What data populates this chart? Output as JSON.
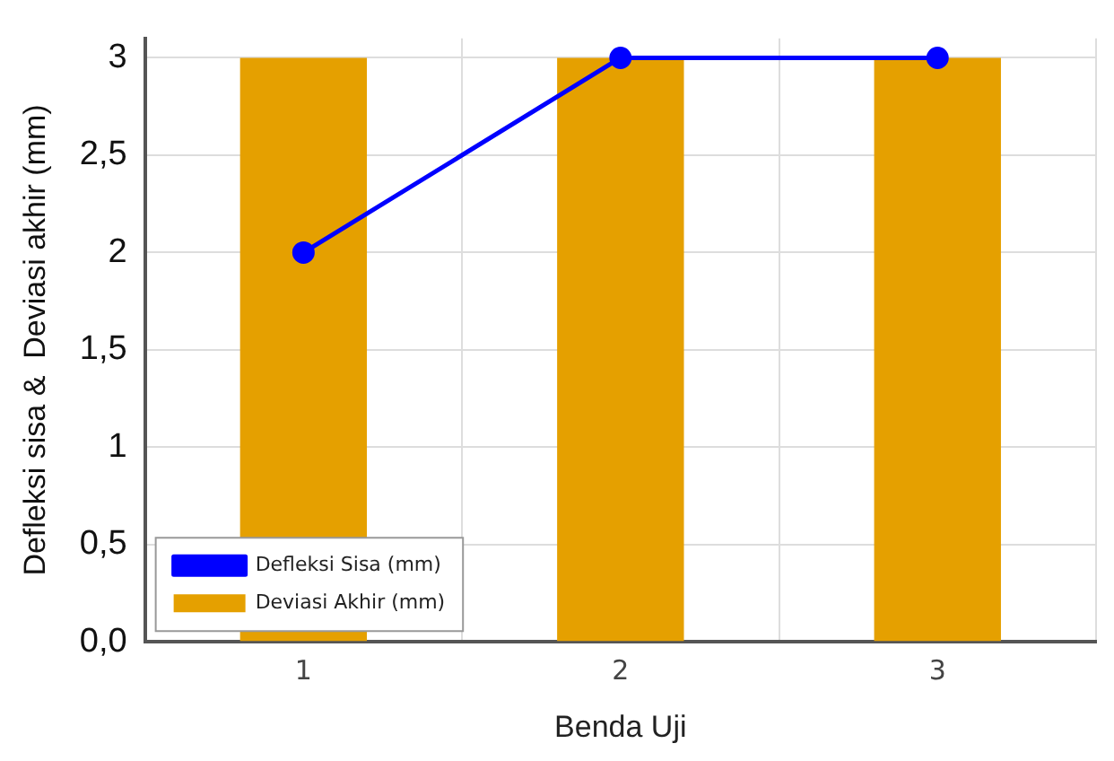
{
  "chart_data": {
    "type": "bar",
    "xlabel": "Benda Uji",
    "ylabel": "Defleksi sisa &  Deviasi akhir (mm)",
    "categories": [
      "1",
      "2",
      "3"
    ],
    "series": [
      {
        "name": "Defleksi Sisa (mm)",
        "type": "line",
        "color": "#0000ff",
        "values": [
          2,
          3,
          3
        ]
      },
      {
        "name": "Deviasi Akhir (mm)",
        "color": "#e5a000",
        "values": [
          3,
          3,
          3
        ]
      }
    ],
    "ylim": [
      0,
      3.1
    ],
    "yticks": [
      {
        "value": 0,
        "label": "0,0"
      },
      {
        "value": 0.5,
        "label": "0,5"
      },
      1,
      {
        "value": 1.5,
        "label": "1,5"
      },
      2,
      {
        "value": 2.5,
        "label": "2,5"
      },
      3
    ],
    "grid": true,
    "legend": "bottom left",
    "marker": "circle",
    "line_style": "solid"
  }
}
